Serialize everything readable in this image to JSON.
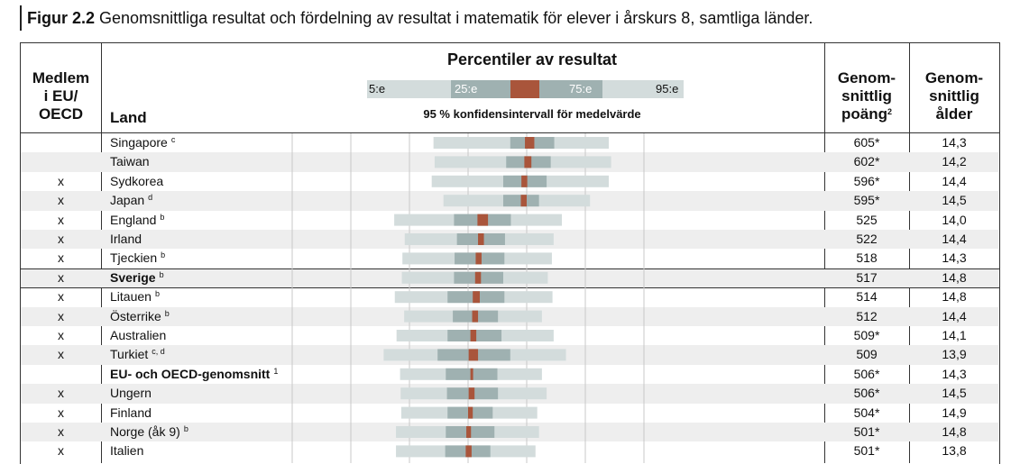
{
  "figure": {
    "label": "Figur 2.2",
    "title": "Genomsnittliga resultat och fördelning av resultat i matematik för elever i årskurs 8, samtliga länder."
  },
  "headers": {
    "member": [
      "Medlem",
      "i EU/",
      "OECD"
    ],
    "land": "Land",
    "percentiles_title": "Percentiler av resultat",
    "legend_labels": [
      "5:e",
      "25:e",
      "75:e",
      "95:e"
    ],
    "ci_caption": "95 % konfidensintervall för medelvärde",
    "score": [
      "Genom-",
      "snittlig",
      "poäng"
    ],
    "score_sup": "2",
    "age": [
      "Genom-",
      "snittlig",
      "ålder"
    ]
  },
  "colors": {
    "outer_band": "#d3dcdc",
    "inner_band": "#9fb1b1",
    "ci": "#a9553b",
    "row_shade": "#eeeeee",
    "grid": "#c8c8c8"
  },
  "chart_data": {
    "type": "percentile-bar",
    "title": "Percentiler av resultat",
    "rows": [
      {
        "member": "",
        "country": "Singapore",
        "sup": "c",
        "p5": 441,
        "p25": 572,
        "ci": [
          597,
          613
        ],
        "p75": 647,
        "p95": 740,
        "score": "605*",
        "age": "14,3",
        "bold": false,
        "highlight": false
      },
      {
        "member": "",
        "country": "Taiwan",
        "sup": "",
        "p5": 443,
        "p25": 565,
        "ci": [
          596,
          608
        ],
        "p75": 641,
        "p95": 744,
        "score": "602*",
        "age": "14,2",
        "bold": false,
        "highlight": false
      },
      {
        "member": "x",
        "country": "Sydkorea",
        "sup": "",
        "p5": 438,
        "p25": 560,
        "ci": [
          591,
          601
        ],
        "p75": 634,
        "p95": 740,
        "score": "596*",
        "age": "14,4",
        "bold": false,
        "highlight": false
      },
      {
        "member": "x",
        "country": "Japan",
        "sup": "d",
        "p5": 458,
        "p25": 560,
        "ci": [
          590,
          600
        ],
        "p75": 621,
        "p95": 708,
        "score": "595*",
        "age": "14,5",
        "bold": false,
        "highlight": false
      },
      {
        "member": "x",
        "country": "England",
        "sup": "b",
        "p5": 374,
        "p25": 476,
        "ci": [
          516,
          534
        ],
        "p75": 573,
        "p95": 660,
        "score": "525",
        "age": "14,0",
        "bold": false,
        "highlight": false
      },
      {
        "member": "x",
        "country": "Irland",
        "sup": "",
        "p5": 392,
        "p25": 481,
        "ci": [
          517,
          527
        ],
        "p75": 563,
        "p95": 646,
        "score": "522",
        "age": "14,4",
        "bold": false,
        "highlight": false
      },
      {
        "member": "x",
        "country": "Tjeckien",
        "sup": "b",
        "p5": 388,
        "p25": 477,
        "ci": [
          513,
          523
        ],
        "p75": 562,
        "p95": 643,
        "score": "518",
        "age": "14,3",
        "bold": false,
        "highlight": false
      },
      {
        "member": "x",
        "country": "Sverige",
        "sup": "b",
        "p5": 387,
        "p25": 476,
        "ci": [
          512,
          522
        ],
        "p75": 560,
        "p95": 636,
        "score": "517",
        "age": "14,8",
        "bold": true,
        "highlight": true
      },
      {
        "member": "x",
        "country": "Litauen",
        "sup": "b",
        "p5": 375,
        "p25": 465,
        "ci": [
          508,
          520
        ],
        "p75": 562,
        "p95": 644,
        "score": "514",
        "age": "14,8",
        "bold": false,
        "highlight": false
      },
      {
        "member": "x",
        "country": "Österrike",
        "sup": "b",
        "p5": 391,
        "p25": 474,
        "ci": [
          507,
          517
        ],
        "p75": 551,
        "p95": 626,
        "score": "512",
        "age": "14,4",
        "bold": false,
        "highlight": false
      },
      {
        "member": "x",
        "country": "Australien",
        "sup": "",
        "p5": 378,
        "p25": 465,
        "ci": [
          504,
          514
        ],
        "p75": 557,
        "p95": 646,
        "score": "509*",
        "age": "14,1",
        "bold": false,
        "highlight": false
      },
      {
        "member": "x",
        "country": "Turkiet",
        "sup": "c, d",
        "p5": 356,
        "p25": 448,
        "ci": [
          501,
          517
        ],
        "p75": 572,
        "p95": 667,
        "score": "509",
        "age": "13,9",
        "bold": false,
        "highlight": false
      },
      {
        "member": "",
        "country": "EU- och OECD-genomsnitt",
        "sup": "1",
        "p5": 384,
        "p25": 462,
        "ci": [
          504,
          508
        ],
        "p75": 550,
        "p95": 626,
        "score": "506*",
        "age": "14,3",
        "bold": true,
        "highlight": false
      },
      {
        "member": "x",
        "country": "Ungern",
        "sup": "",
        "p5": 385,
        "p25": 464,
        "ci": [
          501,
          511
        ],
        "p75": 551,
        "p95": 634,
        "score": "506*",
        "age": "14,5",
        "bold": false,
        "highlight": false
      },
      {
        "member": "x",
        "country": "Finland",
        "sup": "",
        "p5": 386,
        "p25": 465,
        "ci": [
          500,
          508
        ],
        "p75": 542,
        "p95": 618,
        "score": "504*",
        "age": "14,9",
        "bold": false,
        "highlight": false
      },
      {
        "member": "x",
        "country": "Norge (åk 9)",
        "sup": "b",
        "p5": 377,
        "p25": 462,
        "ci": [
          497,
          505
        ],
        "p75": 545,
        "p95": 621,
        "score": "501*",
        "age": "14,8",
        "bold": false,
        "highlight": false
      },
      {
        "member": "x",
        "country": "Italien",
        "sup": "",
        "p5": 377,
        "p25": 461,
        "ci": [
          496,
          506
        ],
        "p75": 538,
        "p95": 615,
        "score": "501*",
        "age": "13,8",
        "bold": false,
        "highlight": false
      }
    ],
    "axis": {
      "xlim": [
        200,
        800
      ],
      "grid_every": 100,
      "grid": true
    }
  }
}
